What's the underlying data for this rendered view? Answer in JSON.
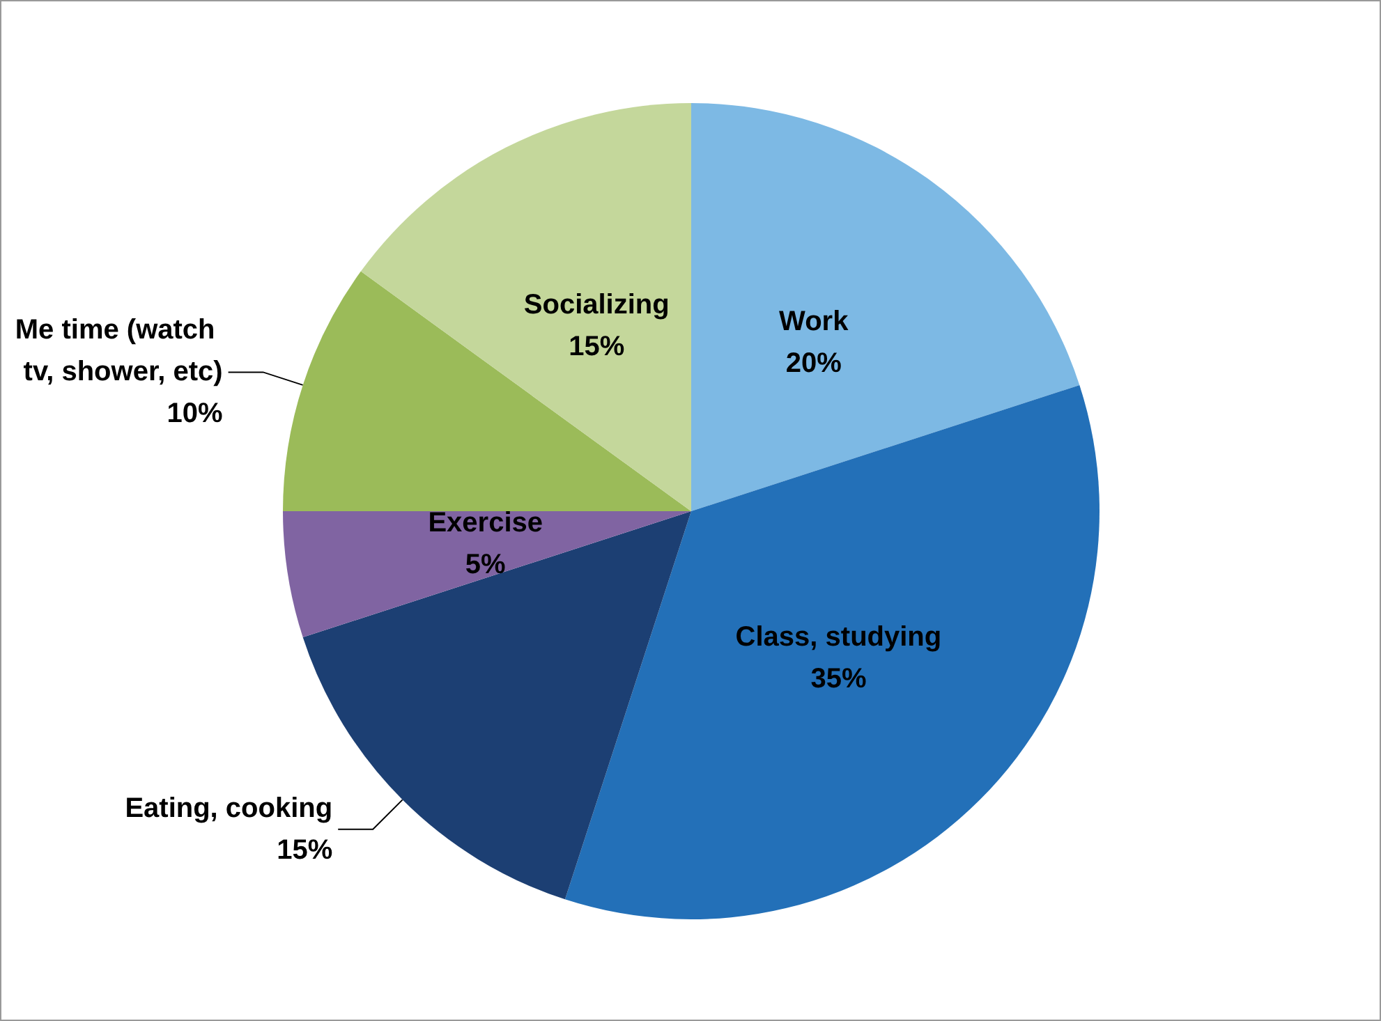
{
  "chart_data": {
    "type": "pie",
    "categories": [
      "Work",
      "Class, studying",
      "Eating, cooking",
      "Exercise",
      "Me time (watch tv, shower, etc)",
      "Socializing"
    ],
    "values": [
      20,
      35,
      15,
      5,
      10,
      15
    ],
    "colors": [
      "#7db9e4",
      "#2370b8",
      "#1c3f73",
      "#8064a2",
      "#9bbb59",
      "#c4d79b"
    ],
    "value_labels": [
      "20%",
      "35%",
      "15%",
      "5%",
      "10%",
      "15%"
    ],
    "legend": false
  }
}
